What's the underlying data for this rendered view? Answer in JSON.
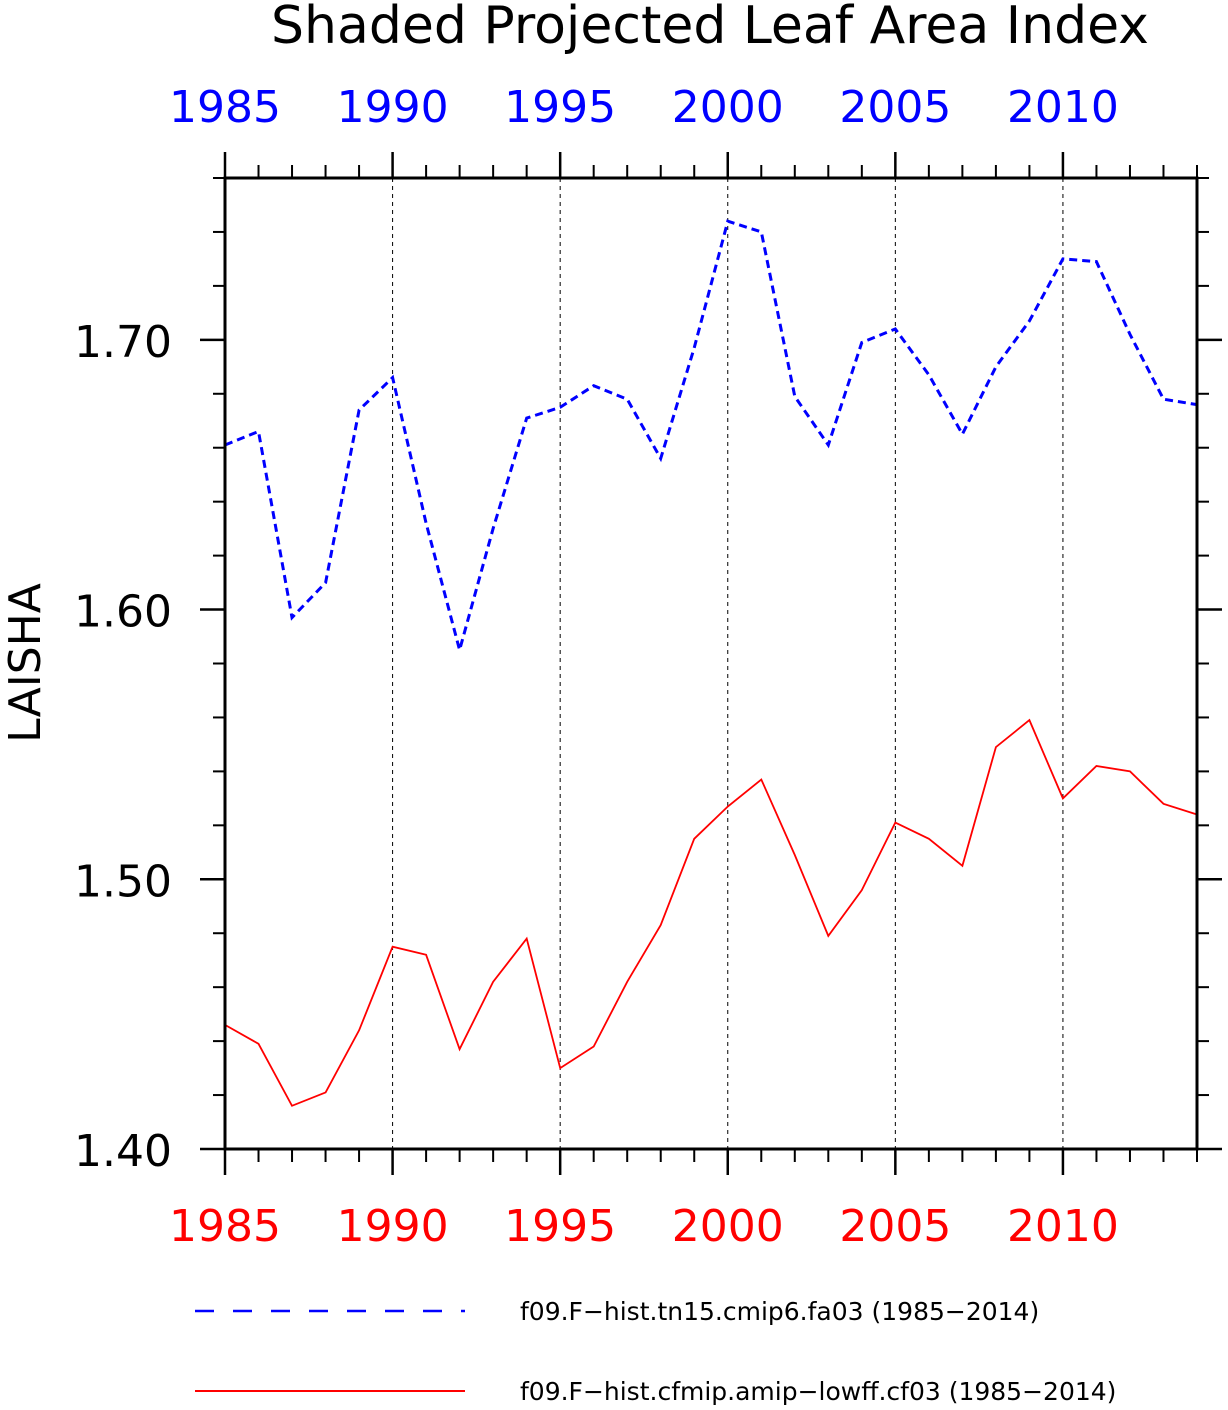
{
  "chart_data": {
    "type": "line",
    "title": "Shaded Projected Leaf Area Index",
    "ylabel": "LAISHA",
    "xlabel": "",
    "xlim": [
      1985,
      2014
    ],
    "ylim": [
      1.4,
      1.76
    ],
    "x_ticks": [
      "1985",
      "1990",
      "1995",
      "2000",
      "2005",
      "2010"
    ],
    "y_ticks": [
      "1.40",
      "1.50",
      "1.60",
      "1.70"
    ],
    "grid": "vertical dashed lines at labeled years",
    "x": [
      1985,
      1986,
      1987,
      1988,
      1989,
      1990,
      1991,
      1992,
      1993,
      1994,
      1995,
      1996,
      1997,
      1998,
      1999,
      2000,
      2001,
      2002,
      2003,
      2004,
      2005,
      2006,
      2007,
      2008,
      2009,
      2010,
      2011,
      2012,
      2013,
      2014
    ],
    "series": [
      {
        "name": "f09.F−hist.tn15.cmip6.fa03 (1985−2014)",
        "color": "#0000ff",
        "style": "dashed",
        "values": [
          1.661,
          1.666,
          1.597,
          1.61,
          1.674,
          1.686,
          1.632,
          1.585,
          1.63,
          1.671,
          1.675,
          1.683,
          1.678,
          1.656,
          1.697,
          1.744,
          1.74,
          1.679,
          1.661,
          1.699,
          1.704,
          1.687,
          1.665,
          1.69,
          1.707,
          1.73,
          1.729,
          1.702,
          1.678,
          1.676
        ]
      },
      {
        "name": "f09.F−hist.cfmip.amip−lowff.cf03 (1985−2014)",
        "color": "#ff0000",
        "style": "solid",
        "values": [
          1.446,
          1.439,
          1.416,
          1.421,
          1.444,
          1.475,
          1.472,
          1.437,
          1.462,
          1.478,
          1.43,
          1.438,
          1.462,
          1.483,
          1.515,
          1.527,
          1.537,
          1.509,
          1.479,
          1.496,
          1.521,
          1.515,
          1.505,
          1.549,
          1.559,
          1.53,
          1.542,
          1.54,
          1.528,
          1.524
        ]
      }
    ]
  }
}
